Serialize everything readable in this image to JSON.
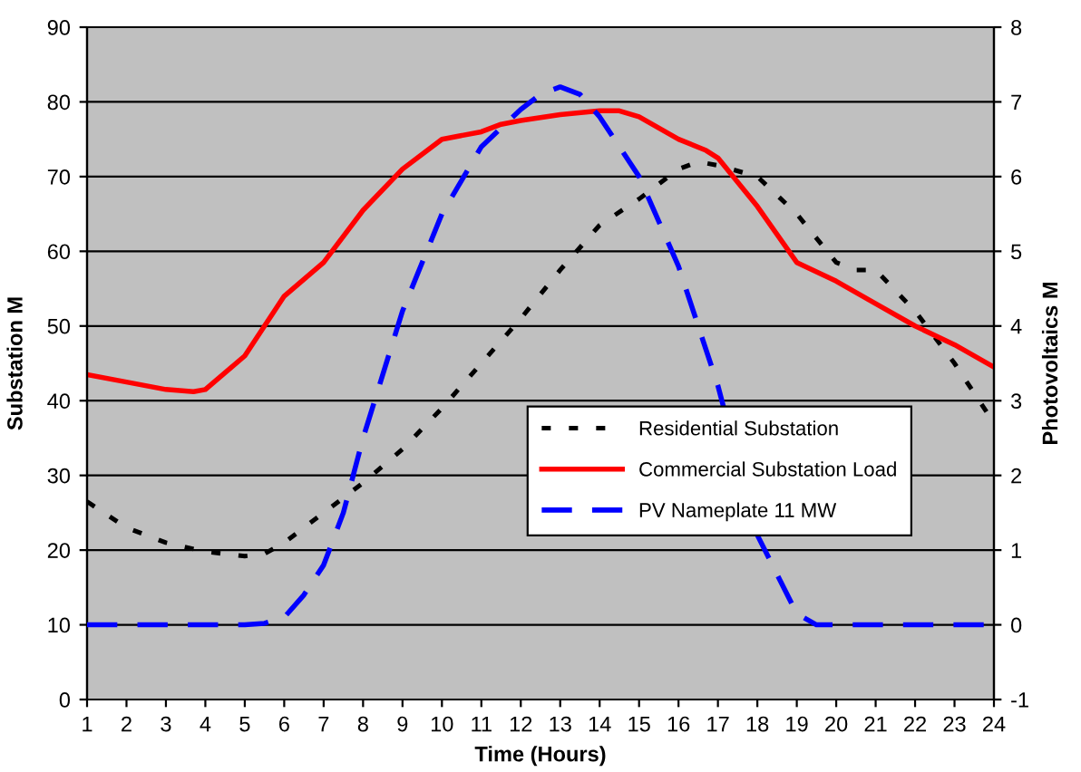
{
  "chart_data": {
    "type": "line",
    "xlabel": "Time (Hours)",
    "ylabel": "Substation M",
    "y2label": "Photovoltaics M",
    "xlim": [
      1,
      24
    ],
    "xticks": [
      1,
      2,
      3,
      4,
      5,
      6,
      7,
      8,
      9,
      10,
      11,
      12,
      13,
      14,
      15,
      16,
      17,
      18,
      19,
      20,
      21,
      22,
      23,
      24
    ],
    "ylim": [
      0,
      90
    ],
    "yticks": [
      0,
      10,
      20,
      30,
      40,
      50,
      60,
      70,
      80,
      90
    ],
    "y2lim": [
      -1,
      8
    ],
    "y2ticks": [
      -1,
      0,
      1,
      2,
      3,
      4,
      5,
      6,
      7,
      8
    ],
    "grid": "y",
    "legend": "right",
    "marker": "none",
    "series": [
      {
        "name": "Residential Substation",
        "color": "#000000",
        "line_style": "dotted",
        "x": [
          1,
          2,
          3,
          4,
          5,
          5.5,
          6,
          7,
          8,
          9,
          10,
          11,
          12,
          13,
          14,
          15,
          16,
          16.5,
          17,
          18,
          19,
          20,
          20.5,
          21,
          22,
          23,
          24
        ],
        "values": [
          26.5,
          23,
          21,
          19.8,
          19.2,
          19.5,
          21,
          25,
          29,
          33.5,
          39,
          45,
          51,
          57.5,
          63.5,
          67,
          71,
          72,
          71.5,
          70,
          65,
          58.5,
          57.5,
          57.5,
          52,
          45,
          37
        ]
      },
      {
        "name": "Commercial Substation Load",
        "color": "#ff0000",
        "line_style": "solid",
        "x": [
          1,
          2,
          3,
          3.7,
          4,
          5,
          6,
          7,
          8,
          9,
          10,
          11,
          11.5,
          12,
          13,
          14,
          14.5,
          15,
          16,
          16.7,
          17,
          18,
          19,
          20,
          21,
          22,
          23,
          24
        ],
        "values": [
          43.5,
          42.5,
          41.5,
          41.2,
          41.5,
          46,
          54,
          58.5,
          65.5,
          71,
          75,
          76,
          77,
          77.5,
          78.3,
          78.8,
          78.8,
          78,
          75,
          73.5,
          72.5,
          66,
          58.5,
          56,
          53,
          50,
          47.5,
          44.5
        ]
      },
      {
        "name": "PV Nameplate 11 MW",
        "color": "#0000ff",
        "line_style": "dashed",
        "axis": "y2",
        "x": [
          1,
          2,
          3,
          4,
          5,
          5.5,
          6,
          6.5,
          7,
          7.5,
          8,
          9,
          10,
          11,
          12,
          12.5,
          13,
          13.5,
          14,
          15,
          16,
          17,
          18,
          19,
          19.5,
          20,
          21,
          22,
          23,
          24
        ],
        "values": [
          0,
          0,
          0,
          0,
          0,
          0.02,
          0.1,
          0.4,
          0.8,
          1.5,
          2.5,
          4.2,
          5.5,
          6.4,
          6.9,
          7.1,
          7.2,
          7.1,
          6.8,
          6.0,
          4.8,
          3.2,
          1.2,
          0.15,
          0,
          0,
          0,
          0,
          0,
          0
        ]
      }
    ]
  }
}
